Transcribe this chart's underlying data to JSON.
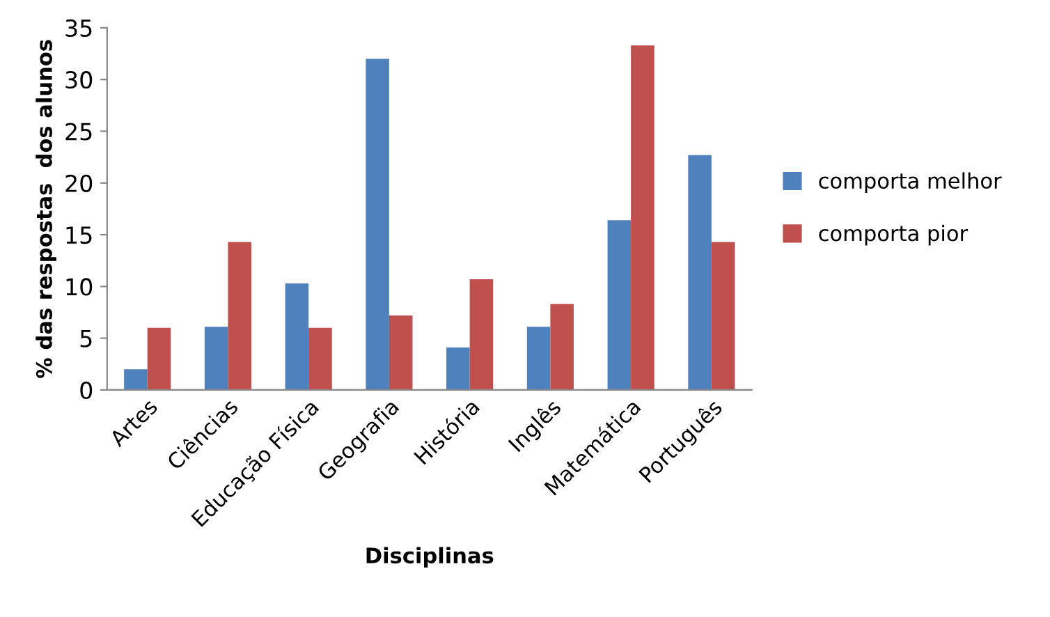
{
  "chart_data": {
    "type": "bar",
    "xlabel": "Disciplinas",
    "ylabel": "% das respostas  dos alunos",
    "categories": [
      "Artes",
      "Ciências",
      "Educação Física",
      "Geografia",
      "História",
      "Inglês",
      "Matemática",
      "Português"
    ],
    "series": [
      {
        "name": "comporta melhor",
        "color": "#4f81bd",
        "values": [
          2.0,
          6.1,
          10.3,
          32.0,
          4.1,
          6.1,
          16.4,
          22.7
        ]
      },
      {
        "name": "comporta pior",
        "color": "#c0504d",
        "values": [
          6.0,
          14.3,
          6.0,
          7.2,
          10.7,
          8.3,
          33.3,
          14.3
        ]
      }
    ],
    "ylim": [
      0,
      35
    ],
    "yticks": [
      0,
      5,
      10,
      15,
      20,
      25,
      30,
      35
    ],
    "grid": false,
    "legend": "right"
  }
}
